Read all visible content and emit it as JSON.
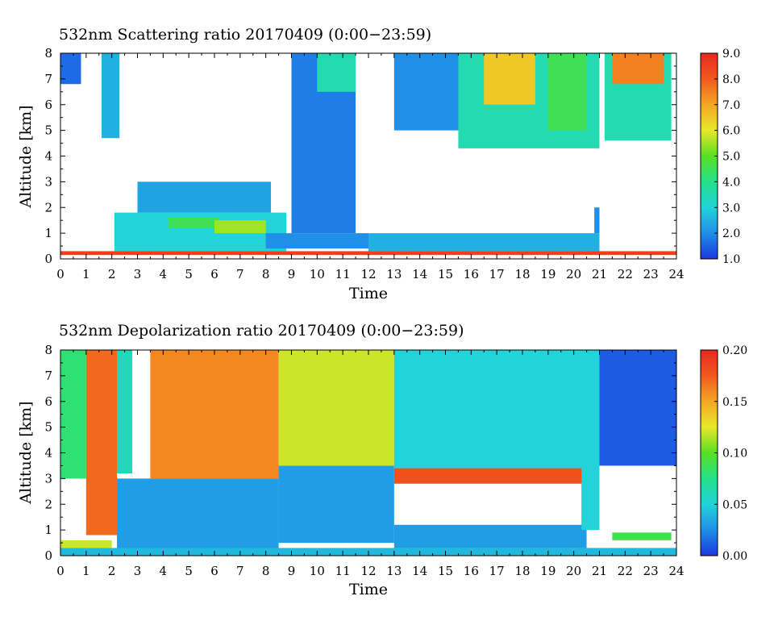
{
  "chart_data": [
    {
      "type": "heatmap",
      "title": "532nm Scattering ratio  20170409 (0:00−23:59)",
      "xlabel": "Time",
      "ylabel": "Altitude [km]",
      "xlim": [
        0,
        24
      ],
      "ylim": [
        0,
        8
      ],
      "x_ticks": [
        "0",
        "1",
        "2",
        "3",
        "4",
        "5",
        "6",
        "7",
        "8",
        "9",
        "10",
        "11",
        "12",
        "13",
        "14",
        "15",
        "16",
        "17",
        "18",
        "19",
        "20",
        "21",
        "22",
        "23",
        "24"
      ],
      "y_ticks": [
        "0",
        "1",
        "2",
        "3",
        "4",
        "5",
        "6",
        "7",
        "8"
      ],
      "colorbar": {
        "range": [
          1.0,
          9.0
        ],
        "ticks": [
          "1.0",
          "2.0",
          "3.0",
          "4.0",
          "5.0",
          "6.0",
          "7.0",
          "8.0",
          "9.0"
        ]
      },
      "colormap": [
        "#1b38e0",
        "#1f8fe8",
        "#22d3d8",
        "#25e08a",
        "#58e022",
        "#e8e82a",
        "#f5a623",
        "#f05a1e",
        "#e8281e"
      ],
      "no_data_color": "#ffffff",
      "regions": [
        {
          "t": [
            0.0,
            0.8
          ],
          "alt": [
            6.8,
            8.0
          ],
          "value": 1.6
        },
        {
          "t": [
            1.6,
            2.3
          ],
          "alt": [
            4.7,
            8.0
          ],
          "value": 2.5
        },
        {
          "t": [
            2.1,
            8.8
          ],
          "alt": [
            0.3,
            1.8
          ],
          "value": 3.0
        },
        {
          "t": [
            3.0,
            8.2
          ],
          "alt": [
            1.8,
            3.0
          ],
          "value": 2.3
        },
        {
          "t": [
            4.2,
            6.2
          ],
          "alt": [
            1.2,
            1.6
          ],
          "value": 4.5
        },
        {
          "t": [
            6.0,
            8.0
          ],
          "alt": [
            1.0,
            1.5
          ],
          "value": 5.5
        },
        {
          "t": [
            8.0,
            12.0
          ],
          "alt": [
            0.4,
            1.0
          ],
          "value": 2.0
        },
        {
          "t": [
            9.0,
            11.5
          ],
          "alt": [
            1.0,
            8.0
          ],
          "value": 1.8
        },
        {
          "t": [
            10.0,
            11.5
          ],
          "alt": [
            6.5,
            8.0
          ],
          "value": 3.5
        },
        {
          "t": [
            12.0,
            21.0
          ],
          "alt": [
            0.3,
            1.0
          ],
          "value": 2.5
        },
        {
          "t": [
            13.0,
            16.0
          ],
          "alt": [
            5.0,
            8.0
          ],
          "value": 2.0
        },
        {
          "t": [
            15.5,
            21.0
          ],
          "alt": [
            4.3,
            8.0
          ],
          "value": 3.5
        },
        {
          "t": [
            16.5,
            18.5
          ],
          "alt": [
            6.0,
            8.0
          ],
          "value": 6.5
        },
        {
          "t": [
            19.0,
            20.5
          ],
          "alt": [
            5.0,
            8.0
          ],
          "value": 4.5
        },
        {
          "t": [
            21.2,
            23.8
          ],
          "alt": [
            4.6,
            8.0
          ],
          "value": 3.5
        },
        {
          "t": [
            21.5,
            23.5
          ],
          "alt": [
            6.8,
            8.0
          ],
          "value": 7.5
        },
        {
          "t": [
            20.8,
            21.0
          ],
          "alt": [
            1.0,
            2.0
          ],
          "value": 2.0
        },
        {
          "t": [
            0.0,
            24.0
          ],
          "alt": [
            0.15,
            0.3
          ],
          "value": 8.5
        }
      ]
    },
    {
      "type": "heatmap",
      "title": "532nm Depolarization ratio  20170409 (0:00−23:59)",
      "xlabel": "Time",
      "ylabel": "Altitude [km]",
      "xlim": [
        0,
        24
      ],
      "ylim": [
        0,
        8
      ],
      "x_ticks": [
        "0",
        "1",
        "2",
        "3",
        "4",
        "5",
        "6",
        "7",
        "8",
        "9",
        "10",
        "11",
        "12",
        "13",
        "14",
        "15",
        "16",
        "17",
        "18",
        "19",
        "20",
        "21",
        "22",
        "23",
        "24"
      ],
      "y_ticks": [
        "0",
        "1",
        "2",
        "3",
        "4",
        "5",
        "6",
        "7",
        "8"
      ],
      "colorbar": {
        "range": [
          0.0,
          0.2
        ],
        "ticks": [
          "0.00",
          "0.05",
          "0.10",
          "0.15",
          "0.20"
        ]
      },
      "colormap": [
        "#1b38e0",
        "#1f8fe8",
        "#22d3d8",
        "#25e08a",
        "#58e022",
        "#e8e82a",
        "#f5a623",
        "#f05a1e",
        "#e8281e"
      ],
      "no_data_color": "#ffffff",
      "regions": [
        {
          "t": [
            0.0,
            1.0
          ],
          "alt": [
            3.0,
            8.0
          ],
          "value": 0.08
        },
        {
          "t": [
            1.0,
            2.2
          ],
          "alt": [
            0.8,
            8.0
          ],
          "value": 0.17
        },
        {
          "t": [
            2.2,
            2.8
          ],
          "alt": [
            3.2,
            8.0
          ],
          "value": 0.06
        },
        {
          "t": [
            2.2,
            8.5
          ],
          "alt": [
            0.0,
            3.0
          ],
          "value": 0.03
        },
        {
          "t": [
            3.5,
            8.5
          ],
          "alt": [
            3.0,
            8.0
          ],
          "value": 0.16
        },
        {
          "t": [
            8.5,
            13.0
          ],
          "alt": [
            0.5,
            3.5
          ],
          "value": 0.03
        },
        {
          "t": [
            8.5,
            13.0
          ],
          "alt": [
            3.5,
            8.0
          ],
          "value": 0.12
        },
        {
          "t": [
            13.0,
            20.5
          ],
          "alt": [
            3.3,
            8.0
          ],
          "value": 0.05
        },
        {
          "t": [
            13.0,
            20.5
          ],
          "alt": [
            2.8,
            3.4
          ],
          "value": 0.18
        },
        {
          "t": [
            13.0,
            20.5
          ],
          "alt": [
            0.3,
            1.2
          ],
          "value": 0.03
        },
        {
          "t": [
            20.3,
            21.0
          ],
          "alt": [
            1.0,
            8.0
          ],
          "value": 0.05
        },
        {
          "t": [
            21.0,
            24.0
          ],
          "alt": [
            3.5,
            8.0
          ],
          "value": 0.01
        },
        {
          "t": [
            21.5,
            23.8
          ],
          "alt": [
            0.6,
            0.9
          ],
          "value": 0.09
        },
        {
          "t": [
            0.0,
            24.0
          ],
          "alt": [
            0.0,
            0.3
          ],
          "value": 0.04
        },
        {
          "t": [
            0.0,
            2.0
          ],
          "alt": [
            0.3,
            0.6
          ],
          "value": 0.12
        }
      ]
    }
  ]
}
